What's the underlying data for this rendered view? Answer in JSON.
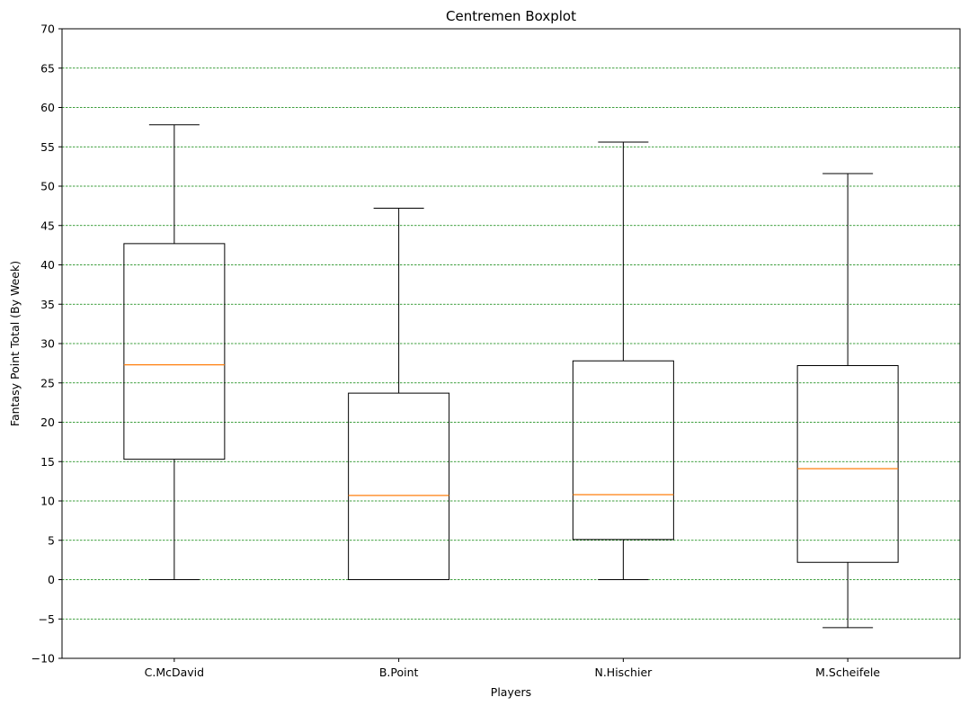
{
  "chart_data": {
    "type": "boxplot",
    "title": "Centremen Boxplot",
    "xlabel": "Players",
    "ylabel": "Fantasy Point Total (By Week)",
    "ylim": [
      -10,
      70
    ],
    "yticks": [
      -10,
      -5,
      0,
      5,
      10,
      15,
      20,
      25,
      30,
      35,
      40,
      45,
      50,
      55,
      60,
      65,
      70
    ],
    "grid": {
      "axis": "y",
      "style": "dashed",
      "color": "#008000"
    },
    "colors": {
      "box": "#000000",
      "median": "#ff7f0e",
      "grid": "#008000"
    },
    "categories": [
      "C.McDavid",
      "B.Point",
      "N.Hischier",
      "M.Scheifele"
    ],
    "boxes": [
      {
        "name": "C.McDavid",
        "whisker_low": 0.0,
        "q1": 15.3,
        "median": 27.3,
        "q3": 42.7,
        "whisker_high": 57.8
      },
      {
        "name": "B.Point",
        "whisker_low": 0.0,
        "q1": 0.0,
        "median": 10.7,
        "q3": 23.7,
        "whisker_high": 47.2
      },
      {
        "name": "N.Hischier",
        "whisker_low": 0.0,
        "q1": 5.1,
        "median": 10.8,
        "q3": 27.8,
        "whisker_high": 55.6
      },
      {
        "name": "M.Scheifele",
        "whisker_low": -6.1,
        "q1": 2.2,
        "median": 14.1,
        "q3": 27.2,
        "whisker_high": 51.6
      }
    ]
  }
}
